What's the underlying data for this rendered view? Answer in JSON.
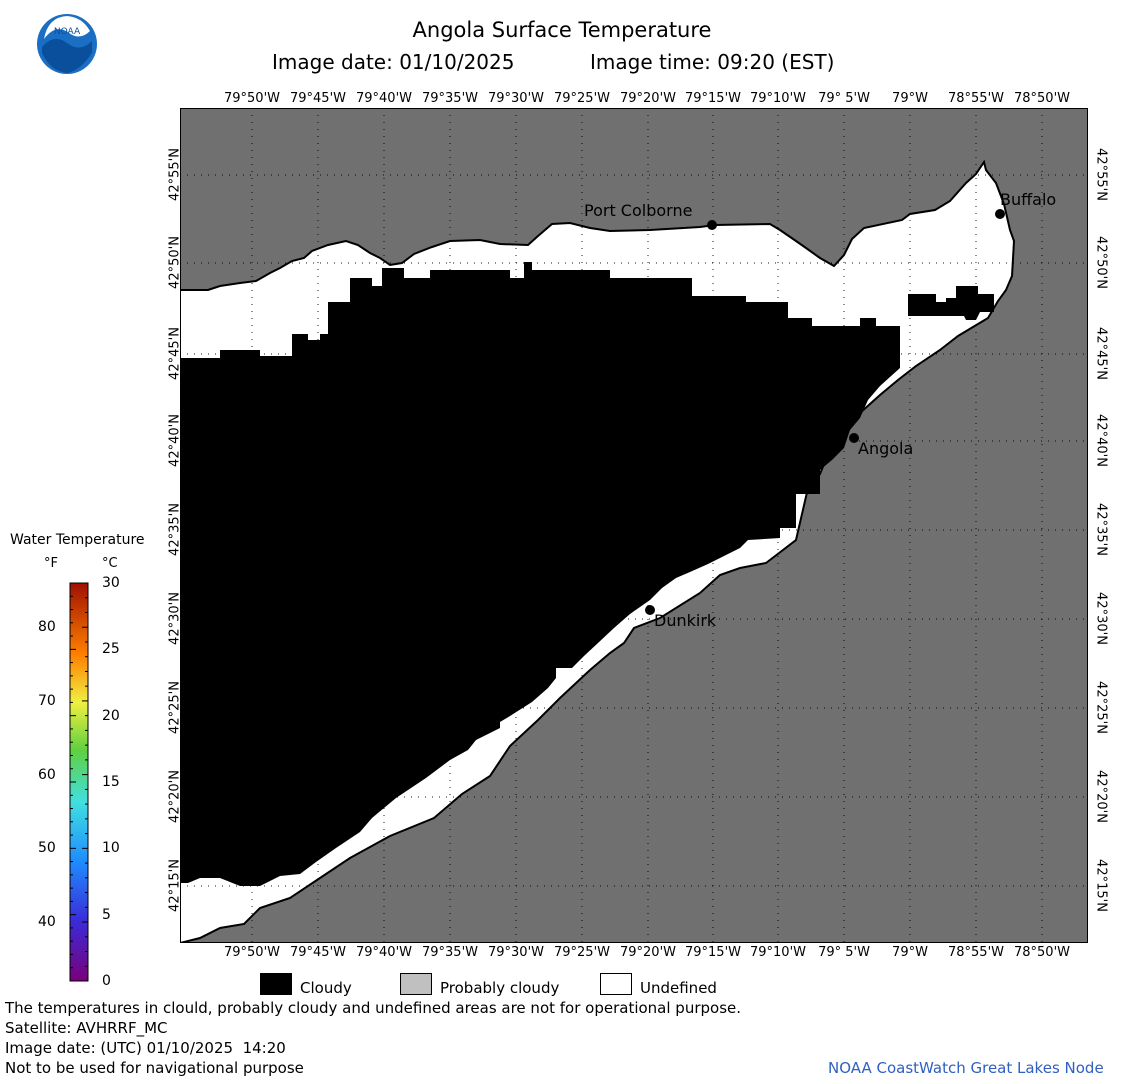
{
  "header": {
    "title": "Angola Surface Temperature",
    "date_label": "Image date: 01/10/2025",
    "time_label": "Image time: 09:20 (EST)"
  },
  "logo": {
    "text": "NOAA",
    "icon": "noaa-logo-icon"
  },
  "map": {
    "lon_labels": [
      "79°50'W",
      "79°45'W",
      "79°40'W",
      "79°35'W",
      "79°30'W",
      "79°25'W",
      "79°20'W",
      "79°15'W",
      "79°10'W",
      "79° 5'W",
      "79°W",
      "78°55'W",
      "78°50'W"
    ],
    "lat_labels": [
      "42°55'N",
      "42°50'N",
      "42°45'N",
      "42°40'N",
      "42°35'N",
      "42°30'N",
      "42°25'N",
      "42°20'N",
      "42°15'N"
    ],
    "cities": [
      {
        "name": "Port Colborne"
      },
      {
        "name": "Buffalo"
      },
      {
        "name": "Angola"
      },
      {
        "name": "Dunkirk"
      }
    ],
    "colors": {
      "land": "#707070",
      "cloud": "#000000",
      "undefined": "#ffffff",
      "grid": "#000000"
    }
  },
  "colorbar": {
    "title": "Water Temperature",
    "unit_f": "°F",
    "unit_c": "°C",
    "f_ticks": [
      "80",
      "70",
      "60",
      "50",
      "40"
    ],
    "c_ticks": [
      "30",
      "25",
      "20",
      "15",
      "10",
      "5",
      "0"
    ]
  },
  "legend": {
    "items": [
      {
        "label": "Cloudy",
        "color": "#000000"
      },
      {
        "label": "Probably cloudy",
        "color": "#c0c0c0"
      },
      {
        "label": "Undefined",
        "color": "#ffffff"
      }
    ]
  },
  "footer": {
    "disclaimer": "The temperatures in clould, probably cloudy and undefined areas are not for operational purpose.",
    "satellite": "Satellite: AVHRRF_MC",
    "utc_date": "Image date: (UTC) 01/10/2025  14:20",
    "nav_warning": "Not to be used for navigational purpose",
    "credit": "NOAA CoastWatch Great Lakes Node"
  }
}
